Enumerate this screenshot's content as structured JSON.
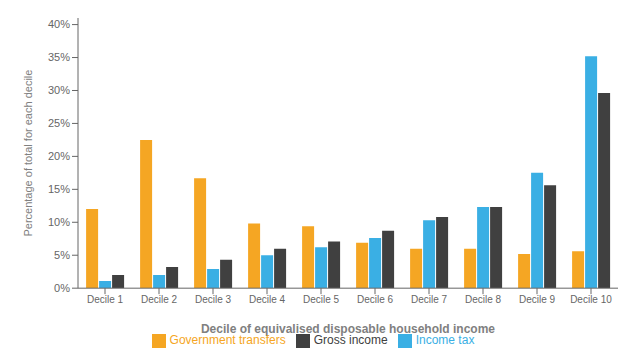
{
  "chart_data": {
    "type": "bar",
    "categories": [
      "Decile 1",
      "Decile 2",
      "Decile 3",
      "Decile 4",
      "Decile 5",
      "Decile 6",
      "Decile 7",
      "Decile 8",
      "Decile 9",
      "Decile 10"
    ],
    "series": [
      {
        "name": "Government transfers",
        "color": "#F5A623",
        "values": [
          12.0,
          22.5,
          16.7,
          9.8,
          9.4,
          6.9,
          6.0,
          6.0,
          5.2,
          5.6
        ]
      },
      {
        "name": "Income tax",
        "color": "#3AAFE4",
        "values": [
          1.1,
          2.0,
          2.9,
          5.0,
          6.2,
          7.6,
          10.3,
          12.3,
          17.5,
          35.2
        ]
      },
      {
        "name": "Gross income",
        "color": "#404040",
        "values": [
          2.0,
          3.2,
          4.3,
          6.0,
          7.1,
          8.7,
          10.8,
          12.3,
          15.6,
          29.6
        ]
      }
    ],
    "xlabel": "Decile of equivalised disposable household income",
    "ylabel": "Percentage of total for each decile",
    "ylim": [
      0,
      41
    ],
    "yticks": [
      {
        "value": 0,
        "label": "0%"
      },
      {
        "value": 5,
        "label": "5%"
      },
      {
        "value": 10,
        "label": "10%"
      },
      {
        "value": 15,
        "label": "15%"
      },
      {
        "value": 20,
        "label": "20%"
      },
      {
        "value": 25,
        "label": "25%"
      },
      {
        "value": 30,
        "label": "30%"
      },
      {
        "value": 35,
        "label": "35%"
      },
      {
        "value": 40,
        "label": "40%"
      }
    ],
    "grid": false,
    "legend": "bottom"
  }
}
